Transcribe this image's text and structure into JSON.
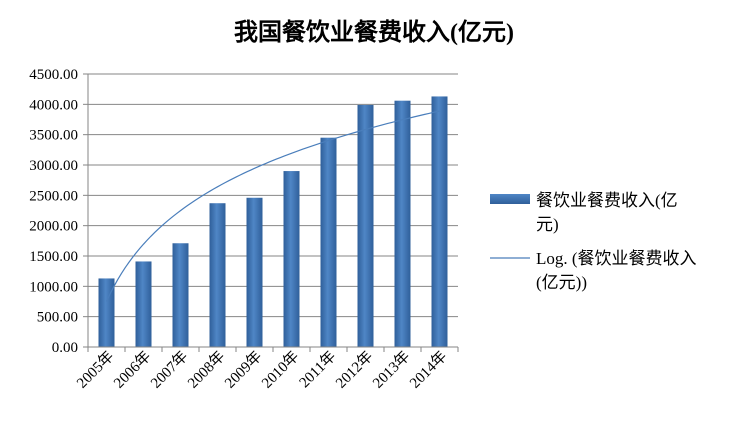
{
  "chart_data": {
    "type": "bar",
    "title": "我国餐饮业餐费收入(亿元)",
    "categories": [
      "2005年",
      "2006年",
      "2007年",
      "2008年",
      "2009年",
      "2010年",
      "2011年",
      "2012年",
      "2013年",
      "2014年"
    ],
    "series": [
      {
        "name": "餐饮业餐费收入(亿元)",
        "values": [
          1130,
          1410,
          1710,
          2370,
          2460,
          2900,
          3450,
          3990,
          4060,
          4130
        ],
        "color": "#4a7ebb"
      }
    ],
    "trendline": {
      "type": "logarithmic",
      "name": "Log. (餐饮业餐费收入(亿元))",
      "color": "#4a7ebb",
      "start_value": 750,
      "end_value": 3890
    },
    "ylim": [
      0,
      4500
    ],
    "yticks": [
      "0.00",
      "500.00",
      "1000.00",
      "1500.00",
      "2000.00",
      "2500.00",
      "3000.00",
      "3500.00",
      "4000.00",
      "4500.00"
    ],
    "xlabel": "",
    "ylabel": "",
    "grid": true,
    "legend_position": "right",
    "legend": {
      "bar_lines": [
        "餐饮业餐费收入(亿",
        "元)"
      ],
      "trend_lines": [
        "Log. (餐饮业餐费收入",
        "(亿元))"
      ]
    }
  }
}
